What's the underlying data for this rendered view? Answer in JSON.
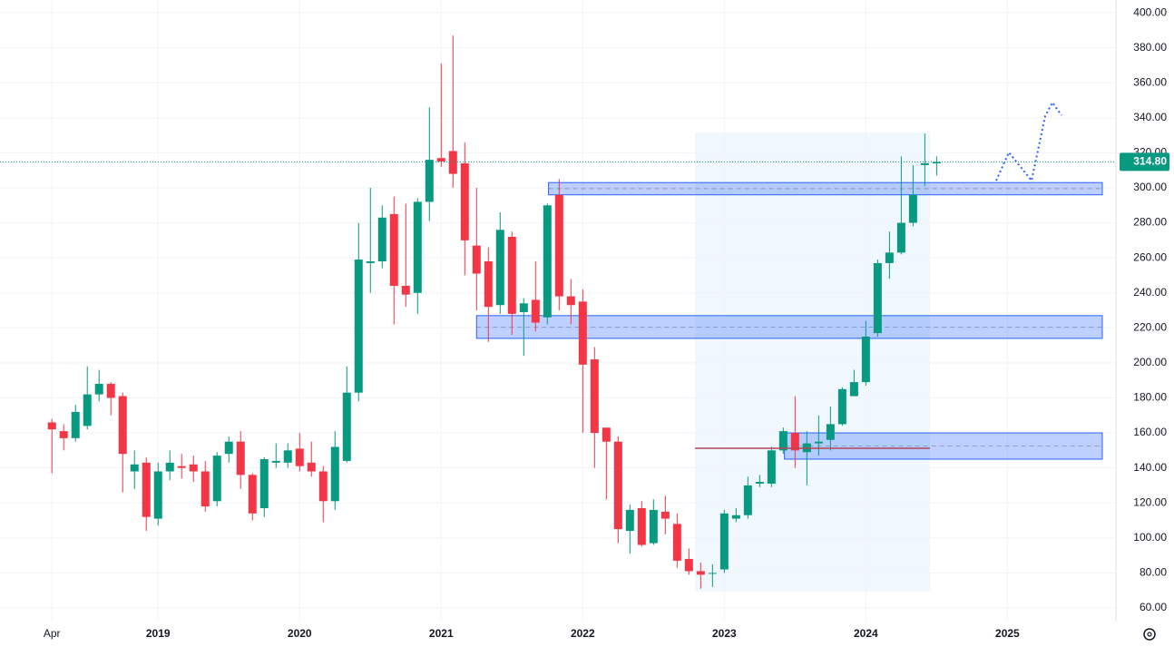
{
  "chart_data": {
    "type": "candlestick",
    "up_color": "#089981",
    "down_color": "#f23645",
    "grid": true,
    "xlim": [
      -4.4,
      90.2
    ],
    "xticks": [
      {
        "value": 0,
        "label": "Apr"
      },
      {
        "value": 9,
        "label": "2019"
      },
      {
        "value": 21,
        "label": "2020"
      },
      {
        "value": 33,
        "label": "2021"
      },
      {
        "value": 45,
        "label": "2022"
      },
      {
        "value": 57,
        "label": "2023"
      },
      {
        "value": 69,
        "label": "2024"
      },
      {
        "value": 81,
        "label": "2025"
      }
    ],
    "ylim": [
      52.2,
      407.3
    ],
    "yticks": [
      {
        "value": 60,
        "label": "60.00"
      },
      {
        "value": 80,
        "label": "80.00"
      },
      {
        "value": 100,
        "label": "100.00"
      },
      {
        "value": 120,
        "label": "120.00"
      },
      {
        "value": 140,
        "label": "140.00"
      },
      {
        "value": 160,
        "label": "160.00"
      },
      {
        "value": 180,
        "label": "180.00"
      },
      {
        "value": 200,
        "label": "200.00"
      },
      {
        "value": 220,
        "label": "220.00"
      },
      {
        "value": 240,
        "label": "240.00"
      },
      {
        "value": 260,
        "label": "260.00"
      },
      {
        "value": 280,
        "label": "280.00"
      },
      {
        "value": 300,
        "label": "300.00"
      },
      {
        "value": 320,
        "label": "320.00"
      },
      {
        "value": 340,
        "label": "340.00"
      },
      {
        "value": 360,
        "label": "360.00"
      },
      {
        "value": 380,
        "label": "380.00"
      },
      {
        "value": 400,
        "label": "400.00"
      }
    ],
    "open": [
      166,
      161,
      157,
      164,
      182,
      188,
      181,
      138,
      143,
      111,
      138,
      141,
      142,
      138,
      121,
      148,
      155,
      136,
      117,
      143,
      143,
      151,
      143,
      138,
      121,
      144,
      183,
      257,
      258,
      285,
      244,
      240,
      292,
      317,
      321,
      314,
      267,
      258,
      233,
      272,
      229,
      236,
      226,
      296,
      238,
      235,
      202,
      163,
      155,
      104,
      117,
      97,
      115,
      108,
      88,
      81,
      80,
      82,
      111,
      113,
      131,
      131,
      150,
      160,
      149,
      154,
      156,
      165,
      181,
      189,
      217,
      257,
      263,
      280,
      313,
      314
    ],
    "high": [
      168,
      165,
      176,
      198,
      196,
      189,
      183,
      150,
      146,
      143,
      150,
      148,
      147,
      144,
      149,
      158,
      161,
      137,
      146,
      154,
      154,
      160,
      155,
      141,
      161,
      198,
      280,
      300,
      290,
      295,
      291,
      294,
      346,
      371,
      387,
      326,
      300,
      266,
      286,
      275,
      237,
      258,
      291,
      305,
      248,
      242,
      209,
      163,
      158,
      119,
      121,
      122,
      124,
      114,
      94,
      86,
      85,
      116,
      117,
      135,
      136,
      152,
      163,
      181,
      161,
      170,
      175,
      186,
      196,
      224,
      259,
      275,
      318,
      313,
      331,
      318
    ],
    "low": [
      137,
      150,
      155,
      162,
      178,
      170,
      126,
      128,
      104,
      107,
      133,
      134,
      132,
      115,
      118,
      143,
      128,
      110,
      112,
      140,
      140,
      138,
      135,
      109,
      116,
      143,
      178,
      240,
      254,
      222,
      232,
      228,
      281,
      312,
      300,
      250,
      230,
      212,
      228,
      216,
      204,
      218,
      222,
      230,
      222,
      160,
      140,
      122,
      97,
      91,
      95,
      96,
      102,
      83,
      79,
      71,
      72,
      80,
      109,
      111,
      129,
      129,
      148,
      140,
      130,
      147,
      150,
      164,
      181,
      187,
      215,
      248,
      262,
      278,
      301,
      307
    ],
    "close": [
      162,
      157,
      172,
      182,
      188,
      180,
      148,
      142,
      112,
      138,
      143,
      140,
      138,
      118,
      147,
      155,
      136,
      114,
      145,
      144,
      150,
      141,
      138,
      121,
      152,
      183,
      259,
      258,
      283,
      244,
      239,
      292,
      316,
      315,
      308,
      270,
      251,
      232,
      276,
      228,
      234,
      223,
      290,
      238,
      233,
      199,
      160,
      155,
      105,
      116,
      96,
      116,
      111,
      87,
      81,
      79,
      80,
      114,
      113,
      130,
      132,
      150,
      161,
      150,
      154,
      155,
      165,
      185,
      189,
      215,
      257,
      263,
      280,
      296,
      314,
      314.8
    ],
    "last_price": 314.8,
    "last_price_label": "314.80",
    "last_price_color": "#089981",
    "zones": [
      {
        "start": 42.1,
        "low": 296,
        "high": 303
      },
      {
        "start": 36,
        "low": 214,
        "high": 227
      },
      {
        "start": 62.1,
        "low": 145,
        "high": 160
      }
    ]
  }
}
